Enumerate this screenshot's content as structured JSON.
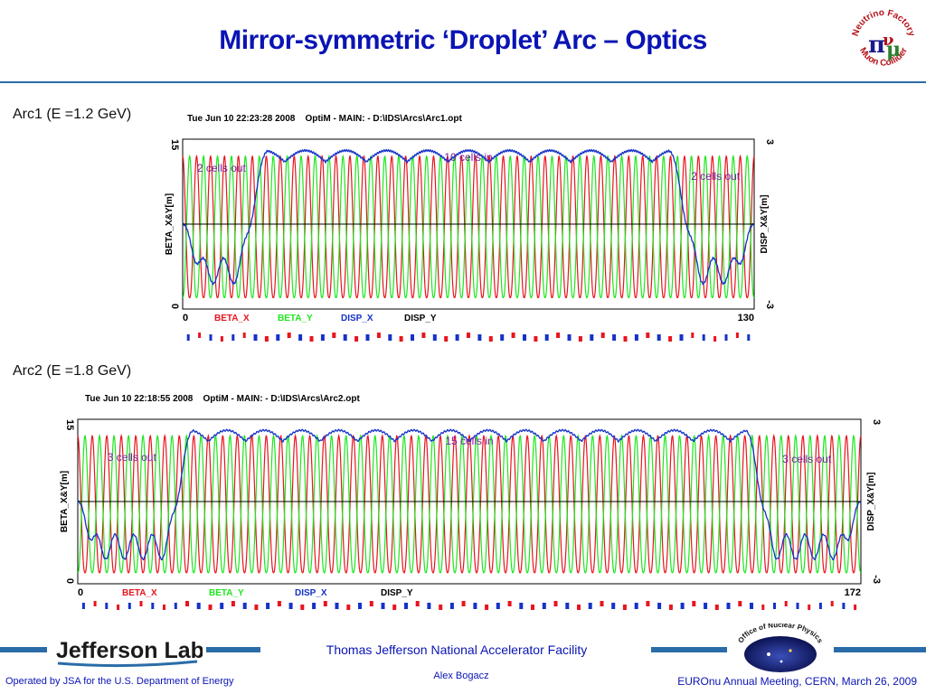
{
  "slide": {
    "title": "Mirror-symmetric ‘Droplet’ Arc  –  Optics",
    "logo_nf_text": [
      "Neutrino Factory",
      "Muon Collider"
    ],
    "footer": {
      "facility": "Thomas Jefferson National Accelerator Facility",
      "author": "Alex Bogacz",
      "operated_by": "Operated by JSA for the U.S. Department of Energy",
      "meeting": "EUROnu Annual Meeting, CERN, March 26, 2009",
      "jlab_logo_text": "Jefferson Lab",
      "onp_logo_text": "Office of Nuclear Physics"
    }
  },
  "colors": {
    "beta_x": "#e8141e",
    "beta_y": "#1ee61e",
    "disp_x": "#1432c8",
    "disp_y": "#000000",
    "accent": "#0a14b4",
    "annotation": "#7a1f99"
  },
  "chart_data": [
    {
      "type": "line",
      "panel_label": "Arc1 (E =1.2 GeV)",
      "header": "Tue Jun 10 22:23:28 2008    OptiM - MAIN: - D:\\IDS\\Arcs\\Arc1.opt",
      "xlim": [
        0,
        130
      ],
      "x_tick_labels": [
        "0",
        "130"
      ],
      "ylim_left": [
        0,
        15
      ],
      "ylim_right": [
        -3,
        3
      ],
      "y_left_tick_labels": [
        "0",
        "15"
      ],
      "y_right_tick_labels": [
        "-3",
        "3"
      ],
      "ylabel_left": "BETA_X&Y[m]",
      "ylabel_right": "DISP_X&Y[m]",
      "legend": [
        "BETA_X",
        "BETA_Y",
        "DISP_X",
        "DISP_Y"
      ],
      "structure": {
        "cells_out_left": 2,
        "cells_in": 10,
        "cells_out_right": 2,
        "beta_periods": 41
      },
      "series": [
        {
          "name": "BETA_X",
          "axis": "left",
          "min": 1.0,
          "max": 13.5
        },
        {
          "name": "BETA_Y",
          "axis": "left",
          "min": 1.0,
          "max": 13.5
        },
        {
          "name": "DISP_X",
          "axis": "right",
          "in_cell_min": 1.8,
          "in_cell_max": 2.6,
          "out_cell_min": -2.1,
          "out_cell_max": -1.2
        },
        {
          "name": "DISP_Y",
          "axis": "right",
          "value": 0
        }
      ],
      "annotations": [
        "2 cells out",
        "10 cells in",
        "2 cells out"
      ]
    },
    {
      "type": "line",
      "panel_label": "Arc2 (E =1.8 GeV)",
      "header": "Tue Jun 10 22:18:55 2008    OptiM - MAIN: - D:\\IDS\\Arcs\\Arc2.opt",
      "xlim": [
        0,
        172
      ],
      "x_tick_labels": [
        "0",
        "172"
      ],
      "ylim_left": [
        0,
        15
      ],
      "ylim_right": [
        -3,
        3
      ],
      "y_left_tick_labels": [
        "0",
        "15"
      ],
      "y_right_tick_labels": [
        "-3",
        "3"
      ],
      "ylabel_left": "BETA_X&Y[m]",
      "ylabel_right": "DISP_X&Y[m]",
      "legend": [
        "BETA_X",
        "BETA_Y",
        "DISP_X",
        "DISP_Y"
      ],
      "structure": {
        "cells_out_left": 3,
        "cells_in": 15,
        "cells_out_right": 3,
        "beta_periods": 54
      },
      "series": [
        {
          "name": "BETA_X",
          "axis": "left",
          "min": 1.0,
          "max": 13.5
        },
        {
          "name": "BETA_Y",
          "axis": "left",
          "min": 1.0,
          "max": 13.5
        },
        {
          "name": "DISP_X",
          "axis": "right",
          "in_cell_min": 1.8,
          "in_cell_max": 2.6,
          "out_cell_min": -2.1,
          "out_cell_max": -1.2
        },
        {
          "name": "DISP_Y",
          "axis": "right",
          "value": 0
        }
      ],
      "annotations": [
        "3 cells out",
        "15 cells in",
        "3 cells out"
      ]
    }
  ]
}
